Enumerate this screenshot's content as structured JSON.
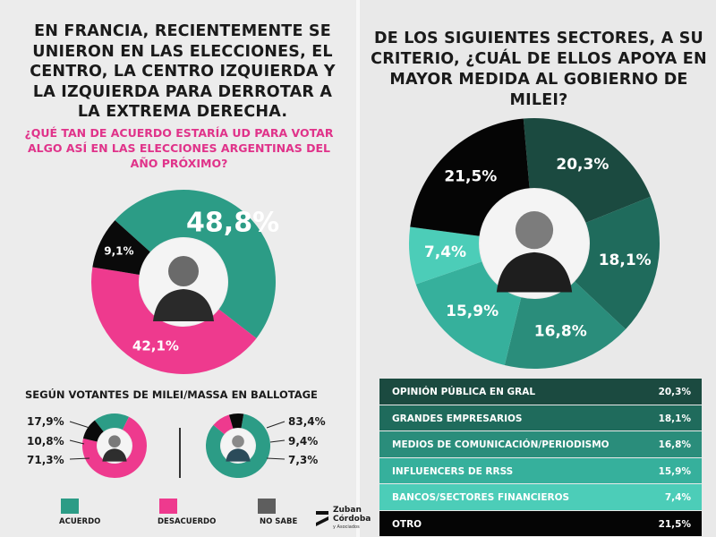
{
  "colors": {
    "acuerdo": "#2c9c86",
    "desacuerdo": "#ee3a8e",
    "no_sabe": "#0a0a0a",
    "right_slices": [
      "#1b4a40",
      "#1f6b5c",
      "#2a8d7b",
      "#36b09c",
      "#4ccdb8",
      "#050505"
    ]
  },
  "left": {
    "title": "EN FRANCIA, RECIENTEMENTE SE UNIERON EN LAS ELECCIONES, EL CENTRO, LA CENTRO IZQUIERDA Y LA IZQUIERDA PARA DERROTAR A LA EXTREMA DERECHA.",
    "question": "¿QUÉ TAN DE ACUERDO ESTARÍA UD PARA VOTAR ALGO ASÍ EN LAS ELECCIONES ARGENTINAS DEL AÑO PRÓXIMO?",
    "ballotage_title": "SEGÚN VOTANTES DE MILEI/MASSA EN BALLOTAGE",
    "legend": [
      "ACUERDO",
      "DESACUERDO",
      "NO SABE"
    ]
  },
  "right": {
    "title": "DE LOS SIGUIENTES SECTORES, A SU CRITERIO, ¿CUÁL DE ELLOS APOYA EN MAYOR MEDIDA AL GOBIERNO DE MILEI?"
  },
  "logo": {
    "line1": "Zuban",
    "line2": "Córdoba",
    "line3": "y Asociados"
  },
  "chart_data": [
    {
      "type": "pie",
      "categories": [
        "ACUERDO",
        "DESACUERDO",
        "NO SABE"
      ],
      "values": [
        48.8,
        42.1,
        9.1
      ],
      "labels": [
        "48,8%",
        "42,1%",
        "9,1%"
      ]
    },
    {
      "type": "pie",
      "categories": [
        "ACUERDO",
        "DESACUERDO",
        "NO SABE"
      ],
      "values": [
        17.9,
        71.3,
        10.8
      ],
      "labels": [
        "17,9%",
        "71,3%",
        "10,8%"
      ]
    },
    {
      "type": "pie",
      "categories": [
        "ACUERDO",
        "DESACUERDO",
        "NO SABE"
      ],
      "values": [
        83.4,
        9.4,
        7.3
      ],
      "labels": [
        "83,4%",
        "9,4%",
        "7,3%"
      ]
    },
    {
      "type": "pie",
      "categories": [
        "OPINIÓN PÚBLICA EN GRAL",
        "GRANDES EMPRESARIOS",
        "MEDIOS DE COMUNICACIÓN/PERIODISMO",
        "INFLUENCERS DE RRSS",
        "BANCOS/SECTORES FINANCIEROS",
        "OTRO"
      ],
      "values": [
        20.3,
        18.1,
        16.8,
        15.9,
        7.4,
        21.5
      ],
      "labels": [
        "20,3%",
        "18,1%",
        "16,8%",
        "15,9%",
        "7,4%",
        "21,5%"
      ]
    }
  ]
}
